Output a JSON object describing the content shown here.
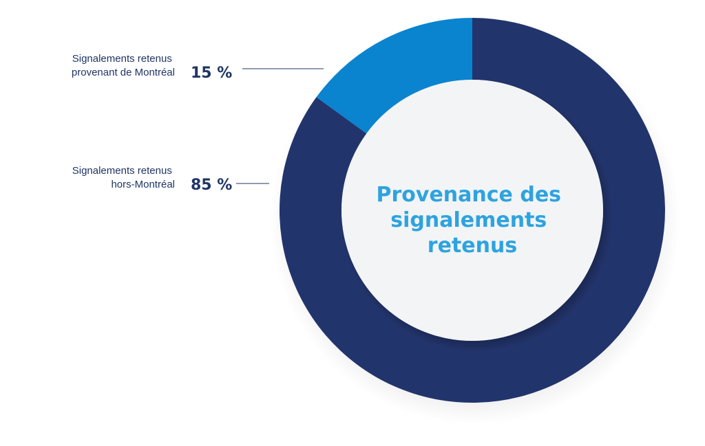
{
  "chart_data": {
    "type": "pie",
    "title": "Provenance des signalements retenus",
    "title_lines": [
      "Provenance des",
      "signalements",
      "retenus"
    ],
    "series": [
      {
        "label_lines": [
          "Signalements retenus",
          "provenant de Montréal"
        ],
        "value": 15,
        "display": "15 %",
        "color": "#0a84cf"
      },
      {
        "label_lines": [
          "Signalements retenus",
          "hors-Montréal"
        ],
        "value": 85,
        "display": "85 %",
        "color": "#22346c"
      }
    ],
    "legend_position": "left",
    "center_color": "#f2f4f6",
    "title_color": "#2ea3df"
  }
}
